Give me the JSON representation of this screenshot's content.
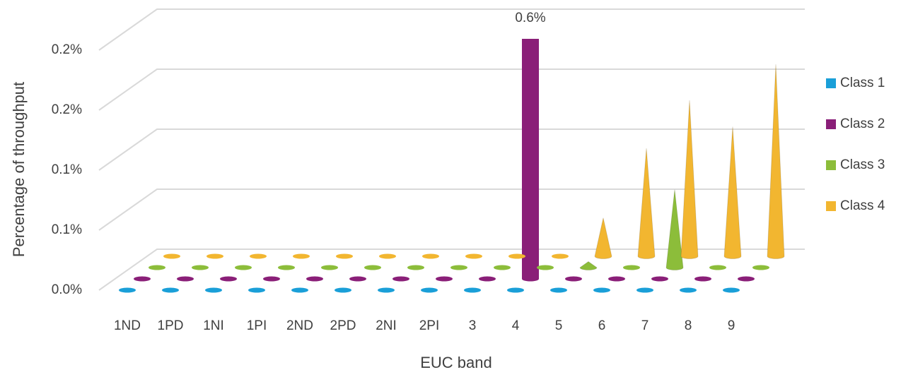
{
  "chart_data": {
    "type": "bar3d",
    "x_label": "EUC band",
    "y_label": "Percentage of throughput",
    "categories": [
      "1ND",
      "1PD",
      "1NI",
      "1PI",
      "2ND",
      "2PD",
      "2NI",
      "2PI",
      "3",
      "4",
      "5",
      "6",
      "7",
      "8",
      "9"
    ],
    "series": [
      {
        "name": "Class 1",
        "color": "#1a9fd8",
        "shape": "cone",
        "values": [
          0,
          0,
          0,
          0,
          0,
          0,
          0,
          0,
          0,
          0,
          0,
          0,
          0,
          0,
          0
        ]
      },
      {
        "name": "Class 2",
        "color": "#8a1f78",
        "shape": "cylinder",
        "values": [
          0,
          0,
          0,
          0,
          0,
          0,
          0,
          0,
          0,
          0.6,
          0,
          0,
          0,
          0,
          0
        ],
        "value_labels": [
          null,
          null,
          null,
          null,
          null,
          null,
          null,
          null,
          null,
          "0.6%",
          null,
          null,
          null,
          null,
          null
        ]
      },
      {
        "name": "Class 3",
        "color": "#8cbd3a",
        "shape": "cone",
        "values": [
          0,
          0,
          0,
          0,
          0,
          0,
          0,
          0,
          0,
          0,
          0.005,
          0,
          0.065,
          0,
          0
        ]
      },
      {
        "name": "Class 4",
        "color": "#f2b630",
        "shape": "cone",
        "values": [
          0,
          0,
          0,
          0,
          0,
          0,
          0,
          0,
          0,
          0,
          0.032,
          0.09,
          0.13,
          0.108,
          0.16
        ]
      }
    ],
    "ylim": [
      0,
      0.2
    ],
    "yticks": [
      {
        "value": 0,
        "label": "0.0%"
      },
      {
        "value": 0.05,
        "label": "0.1%"
      },
      {
        "value": 0.1,
        "label": "0.1%"
      },
      {
        "value": 0.15,
        "label": "0.2%"
      },
      {
        "value": 0.2,
        "label": "0.2%"
      }
    ],
    "grid": true,
    "legend": "right"
  }
}
